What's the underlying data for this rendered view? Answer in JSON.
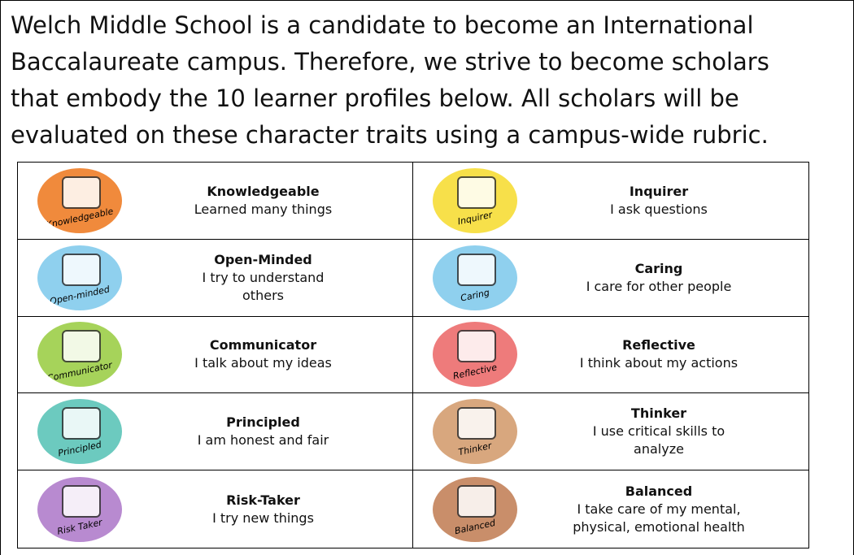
{
  "intro": {
    "lines": [
      "Welch Middle School is a candidate to become an International",
      "Baccalaureate campus. Therefore, we strive to become scholars",
      "that embody the 10 learner profiles below. All scholars will be",
      "evaluated on these character traits using a campus-wide rubric."
    ]
  },
  "table": {
    "cells": [
      {
        "icon_label": "Knowledgeable",
        "icon_color": "#f08a3c",
        "title": "Knowledgeable",
        "description": [
          "Learned many things"
        ]
      },
      {
        "icon_label": "Inquirer",
        "icon_color": "#f7e04a",
        "title": "Inquirer",
        "description": [
          "I ask questions"
        ]
      },
      {
        "icon_label": "Open-minded",
        "icon_color": "#8fd0ee",
        "title": "Open-Minded",
        "description": [
          "I try to understand",
          "others"
        ]
      },
      {
        "icon_label": "Caring",
        "icon_color": "#8fd0ee",
        "title": "Caring",
        "description": [
          "I care for other people"
        ]
      },
      {
        "icon_label": "Communicator",
        "icon_color": "#a6d35a",
        "title": "Communicator",
        "description": [
          "I talk about my ideas"
        ]
      },
      {
        "icon_label": "Reflective",
        "icon_color": "#ee7b7b",
        "title": "Reflective",
        "description": [
          "I think about my actions"
        ]
      },
      {
        "icon_label": "Principled",
        "icon_color": "#6ccabf",
        "title": "Principled",
        "description": [
          "I am honest and fair"
        ]
      },
      {
        "icon_label": "Thinker",
        "icon_color": "#d8a77e",
        "title": "Thinker",
        "description": [
          "I use critical skills to",
          "analyze"
        ]
      },
      {
        "icon_label": "Risk Taker",
        "icon_color": "#b88ad0",
        "title": "Risk-Taker",
        "description": [
          "I try new things"
        ]
      },
      {
        "icon_label": "Balanced",
        "icon_color": "#c98e6a",
        "title": "Balanced",
        "description": [
          "I take care of my mental,",
          "physical, emotional health"
        ]
      }
    ]
  }
}
